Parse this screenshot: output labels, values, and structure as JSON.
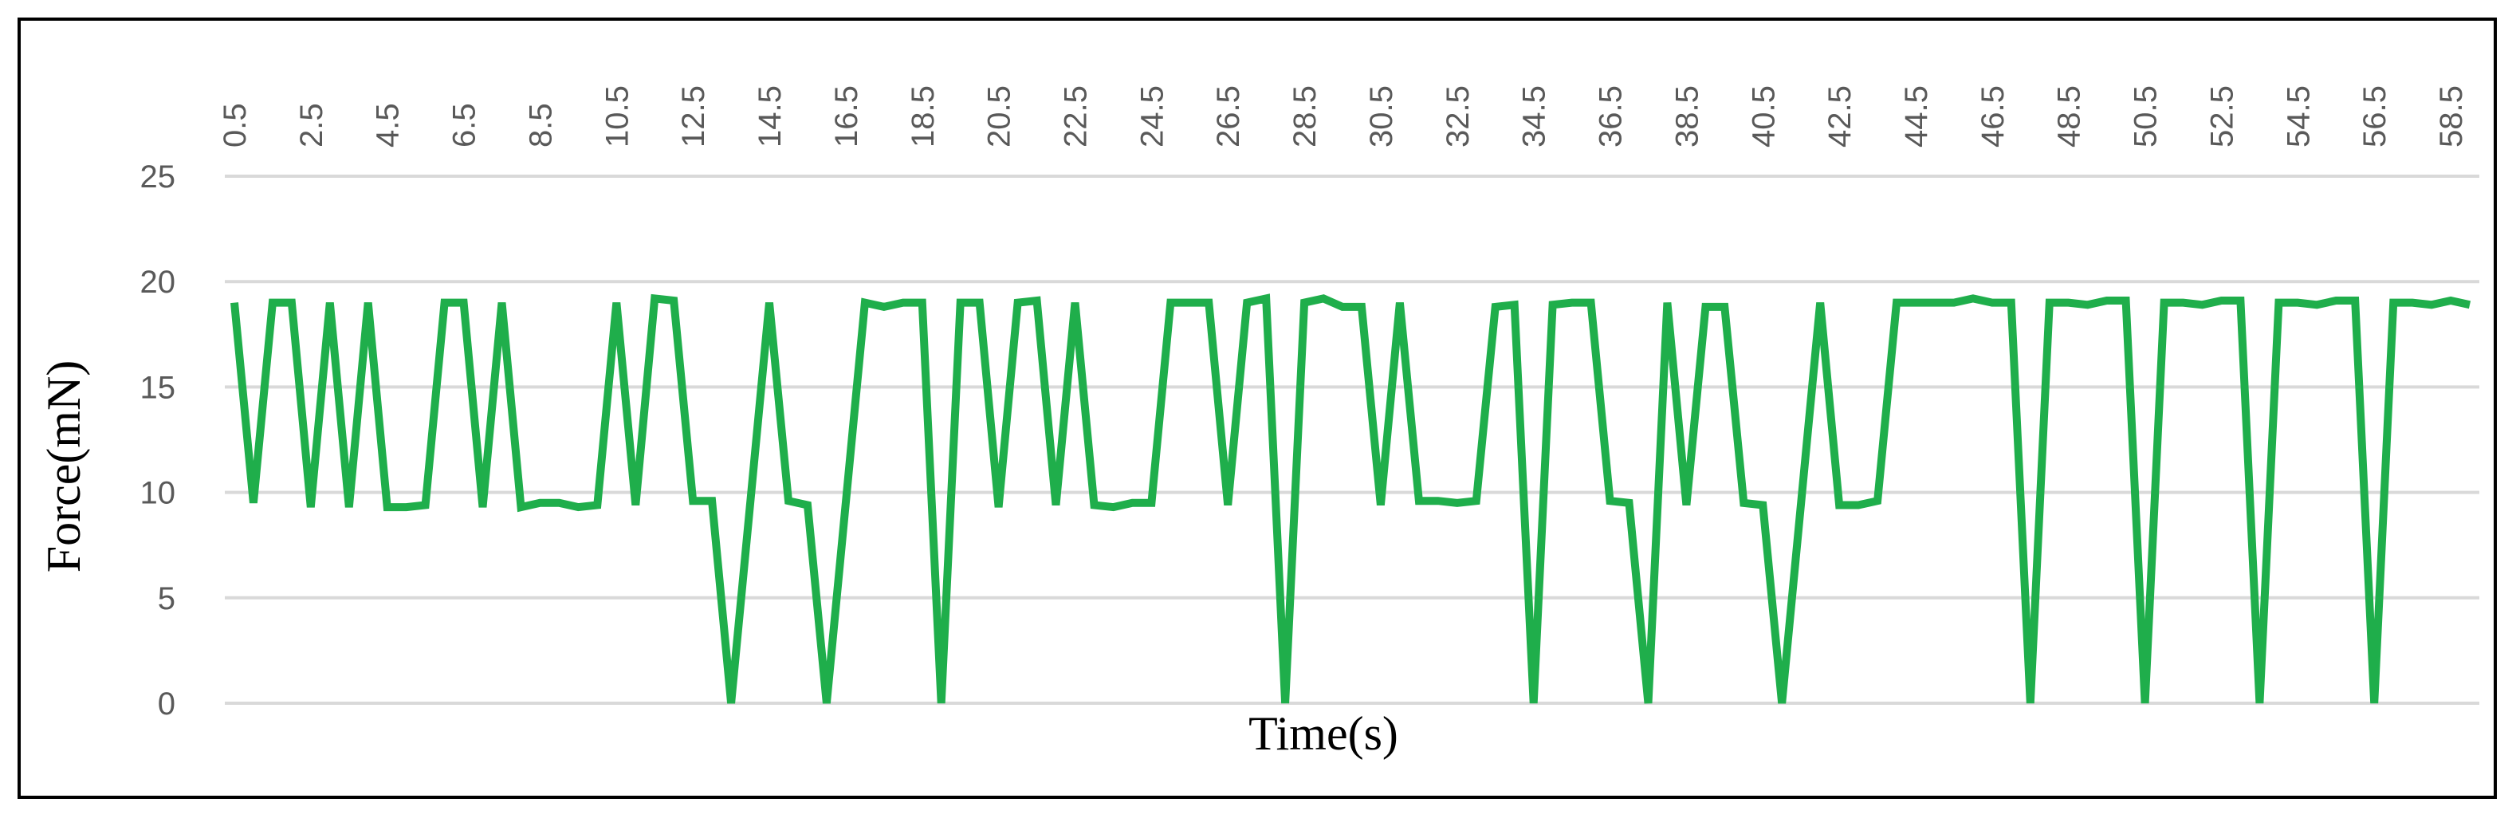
{
  "chart_data": {
    "type": "line",
    "xlabel": "Time(s)",
    "ylabel": "Force(mN)",
    "x": [
      0.5,
      1,
      1.5,
      2,
      2.5,
      3,
      3.5,
      4,
      4.5,
      5,
      5.5,
      6,
      6.5,
      7,
      7.5,
      8,
      8.5,
      9,
      9.5,
      10,
      10.5,
      11,
      11.5,
      12,
      12.5,
      13,
      13.5,
      14,
      14.5,
      15,
      15.5,
      16,
      16.5,
      17,
      17.5,
      18,
      18.5,
      19,
      19.5,
      20,
      20.5,
      21,
      21.5,
      22,
      22.5,
      23,
      23.5,
      24,
      24.5,
      25,
      25.5,
      26,
      26.5,
      27,
      27.5,
      28,
      28.5,
      29,
      29.5,
      30,
      30.5,
      31,
      31.5,
      32,
      32.5,
      33,
      33.5,
      34,
      34.5,
      35,
      35.5,
      36,
      36.5,
      37,
      37.5,
      38,
      38.5,
      39,
      39.5,
      40,
      40.5,
      41,
      41.5,
      42,
      42.5,
      43,
      43.5,
      44,
      44.5,
      45,
      45.5,
      46,
      46.5,
      47,
      47.5,
      48,
      48.5,
      49,
      49.5,
      50,
      50.5,
      51,
      51.5,
      52,
      52.5,
      53,
      53.5,
      54,
      54.5,
      55,
      55.5,
      56,
      56.5,
      57,
      57.5,
      58,
      58.5,
      59
    ],
    "values": [
      19,
      9.5,
      19,
      19,
      9.3,
      19,
      9.3,
      19,
      9.3,
      9.3,
      9.4,
      19,
      19,
      9.3,
      19,
      9.3,
      9.5,
      9.5,
      9.3,
      9.4,
      19,
      9.4,
      19.2,
      19.1,
      9.6,
      9.6,
      0,
      9.5,
      19,
      9.6,
      9.4,
      0,
      9.5,
      19,
      18.8,
      19,
      19,
      0,
      19,
      19,
      9.3,
      19,
      19.1,
      9.4,
      19,
      9.4,
      9.3,
      9.5,
      9.5,
      19,
      19,
      19,
      9.4,
      19,
      19.2,
      0,
      19,
      19.2,
      18.8,
      18.8,
      9.4,
      19,
      9.6,
      9.6,
      9.5,
      9.6,
      18.8,
      18.9,
      0,
      18.9,
      19,
      19,
      9.6,
      9.5,
      0,
      19,
      9.4,
      18.8,
      18.8,
      9.5,
      9.4,
      0,
      9.5,
      19,
      9.4,
      9.4,
      9.6,
      19,
      19,
      19,
      19,
      19.2,
      19,
      19,
      0,
      19,
      19,
      18.9,
      19.1,
      19.1,
      0,
      19,
      19,
      18.9,
      19.1,
      19.1,
      0,
      19,
      19,
      18.9,
      19.1,
      19.1,
      0,
      19,
      19,
      18.9,
      19.1,
      18.9
    ],
    "color": "#1fae4b",
    "xlim": [
      0.25,
      59.25
    ],
    "xticks": [
      0.5,
      2.5,
      4.5,
      6.5,
      8.5,
      10.5,
      12.5,
      14.5,
      16.5,
      18.5,
      20.5,
      22.5,
      24.5,
      26.5,
      28.5,
      30.5,
      32.5,
      34.5,
      36.5,
      38.5,
      40.5,
      42.5,
      44.5,
      46.5,
      48.5,
      50.5,
      52.5,
      54.5,
      56.5,
      58.5
    ],
    "ylim": [
      0,
      25
    ],
    "yticks": [
      0,
      5,
      10,
      15,
      20,
      25
    ],
    "grid": true
  }
}
